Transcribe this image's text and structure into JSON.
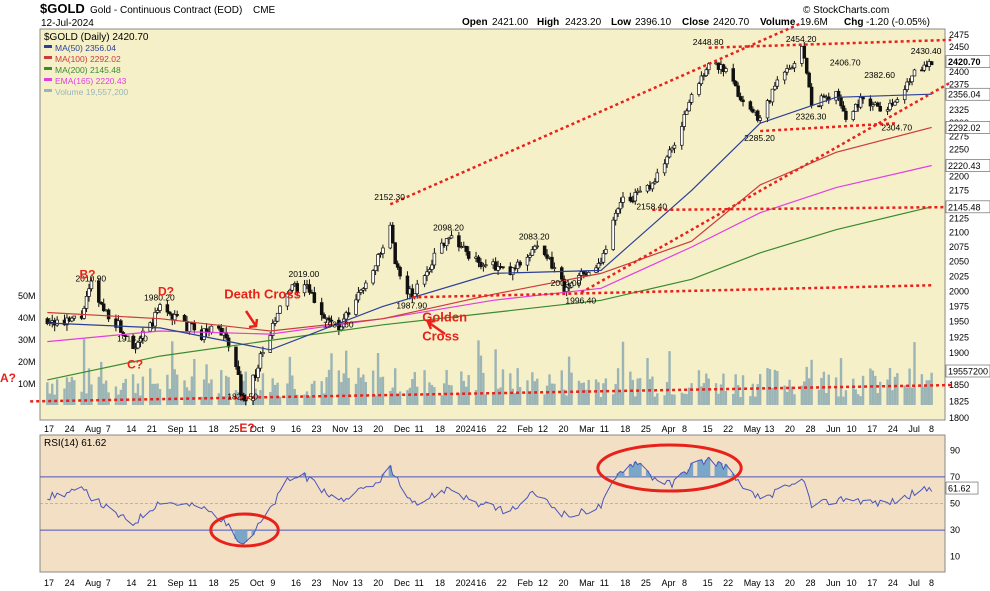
{
  "header": {
    "symbol": "$GOLD",
    "name": "Gold - Continuous Contract (EOD)",
    "exchange": "CME",
    "date": "12-Jul-2024",
    "open_label": "Open",
    "open": "2421.00",
    "high_label": "High",
    "high": "2423.20",
    "low_label": "Low",
    "low": "2396.10",
    "close_label": "Close",
    "close": "2420.70",
    "volume_label": "Volume",
    "volume": "19.6M",
    "chg_label": "Chg",
    "chg": "-1.20 (-0.05%)",
    "watermark": "© StockCharts.com"
  },
  "colors": {
    "price_bg": "#f6f0c8",
    "rsi_bg": "#f3dfc4",
    "candle": "#111111",
    "ma50": "#2a3f9a",
    "ma100": "#cc3b3b",
    "ma200": "#3a8a2f",
    "ema165": "#e23ee2",
    "volume": "#9bb4b6",
    "annotation": "#e8211b",
    "rsi_line": "#4a55bb",
    "rsi_fill": "#7aa6c8"
  },
  "chart_data": [
    {
      "type": "candlestick",
      "title": "$GOLD (Daily) 2420.70",
      "x_range": [
        "2023-07-17",
        "2024-07-12"
      ],
      "ylim": [
        1800,
        2475
      ],
      "scale": "log",
      "legend_placement": "top-left",
      "grid": false,
      "y_ticks": [
        1800,
        1825,
        1850,
        1875,
        1900,
        1925,
        1950,
        1975,
        2000,
        2025,
        2050,
        2075,
        2100,
        2125,
        2150,
        2175,
        2200,
        2225,
        2250,
        2275,
        2300,
        2325,
        2350,
        2375,
        2400,
        2425,
        2450,
        2475
      ],
      "x_tick_labels": [
        "17",
        "24",
        "Aug",
        "7",
        "14",
        "21",
        "Sep",
        "11",
        "18",
        "25",
        "Oct",
        "9",
        "16",
        "23",
        "Nov",
        "13",
        "20",
        "Dec",
        "11",
        "18",
        "2024",
        "16",
        "22",
        "Feb",
        "12",
        "20",
        "Mar",
        "11",
        "18",
        "25",
        "Apr",
        "8",
        "15",
        "22",
        "May",
        "13",
        "20",
        "28",
        "Jun",
        "10",
        "17",
        "24",
        "Jul",
        "8"
      ],
      "legend": [
        {
          "name": "$GOLD (Daily) 2420.70",
          "color": "#111111"
        },
        {
          "name": "MA(50) 2356.04",
          "color": "#2a3f9a"
        },
        {
          "name": "MA(100) 2292.02",
          "color": "#cc3b3b"
        },
        {
          "name": "MA(200) 2145.48",
          "color": "#3a8a2f"
        },
        {
          "name": "EMA(165) 2220.43",
          "color": "#e23ee2"
        },
        {
          "name": "Volume 19,557,200",
          "color": "#9bb4b6"
        }
      ],
      "right_axis_tags": [
        {
          "value": 2420.7,
          "label": "2420.70"
        },
        {
          "value": 2356.04,
          "label": "2356.04"
        },
        {
          "value": 2292.02,
          "label": "2292.02"
        },
        {
          "value": 2220.43,
          "label": "2220.43"
        },
        {
          "value": 2145.48,
          "label": "2145.48"
        },
        {
          "value": 1957,
          "label": "19557200"
        }
      ],
      "price_close": [
        [
          "2023-07-17",
          1955
        ],
        [
          "2023-07-24",
          1945
        ],
        [
          "2023-07-31",
          1960
        ],
        [
          "2023-08-04",
          2010
        ],
        [
          "2023-08-08",
          1975
        ],
        [
          "2023-08-14",
          1950
        ],
        [
          "2023-08-21",
          1913
        ],
        [
          "2023-08-28",
          1940
        ],
        [
          "2023-09-01",
          1975
        ],
        [
          "2023-09-11",
          1945
        ],
        [
          "2023-09-18",
          1930
        ],
        [
          "2023-09-25",
          1945
        ],
        [
          "2023-10-02",
          1880
        ],
        [
          "2023-10-05",
          1823
        ],
        [
          "2023-10-09",
          1860
        ],
        [
          "2023-10-16",
          1930
        ],
        [
          "2023-10-23",
          2000
        ],
        [
          "2023-10-30",
          2010
        ],
        [
          "2023-11-06",
          1965
        ],
        [
          "2023-11-13",
          1935
        ],
        [
          "2023-11-20",
          1985
        ],
        [
          "2023-11-27",
          2040
        ],
        [
          "2023-12-01",
          2070
        ],
        [
          "2023-12-04",
          2110
        ],
        [
          "2023-12-06",
          2040
        ],
        [
          "2023-12-13",
          1990
        ],
        [
          "2023-12-20",
          2045
        ],
        [
          "2023-12-28",
          2098
        ],
        [
          "2024-01-08",
          2050
        ],
        [
          "2024-01-16",
          2040
        ],
        [
          "2024-01-22",
          2030
        ],
        [
          "2024-02-01",
          2075
        ],
        [
          "2024-02-08",
          2045
        ],
        [
          "2024-02-14",
          2000
        ],
        [
          "2024-02-20",
          2030
        ],
        [
          "2024-02-28",
          2050
        ],
        [
          "2024-03-07",
          2160
        ],
        [
          "2024-03-14",
          2165
        ],
        [
          "2024-03-20",
          2190
        ],
        [
          "2024-03-28",
          2250
        ],
        [
          "2024-04-05",
          2350
        ],
        [
          "2024-04-12",
          2420
        ],
        [
          "2024-04-19",
          2400
        ],
        [
          "2024-04-26",
          2340
        ],
        [
          "2024-05-03",
          2310
        ],
        [
          "2024-05-10",
          2380
        ],
        [
          "2024-05-17",
          2420
        ],
        [
          "2024-05-20",
          2454
        ],
        [
          "2024-05-24",
          2335
        ],
        [
          "2024-06-03",
          2360
        ],
        [
          "2024-06-07",
          2310
        ],
        [
          "2024-06-14",
          2350
        ],
        [
          "2024-06-21",
          2330
        ],
        [
          "2024-06-28",
          2340
        ],
        [
          "2024-07-05",
          2405
        ],
        [
          "2024-07-12",
          2420.7
        ]
      ],
      "price_labels": [
        {
          "label": "2010.90",
          "date": "2023-08-04",
          "value": 2010.9
        },
        {
          "label": "1913.60",
          "date": "2023-08-21",
          "value": 1913.6
        },
        {
          "label": "1980.20",
          "date": "2023-09-01",
          "value": 1980.2
        },
        {
          "label": "1823.50",
          "date": "2023-10-05",
          "value": 1823.5
        },
        {
          "label": "2019.00",
          "date": "2023-10-30",
          "value": 2019.0
        },
        {
          "label": "1935.60",
          "date": "2023-11-13",
          "value": 1935.6
        },
        {
          "label": "2152.30",
          "date": "2023-12-04",
          "value": 2152.3
        },
        {
          "label": "1987.90",
          "date": "2023-12-13",
          "value": 1987.9
        },
        {
          "label": "2098.20",
          "date": "2023-12-28",
          "value": 2098.2
        },
        {
          "label": "2083.20",
          "date": "2024-02-01",
          "value": 2083.2
        },
        {
          "label": "2004.00",
          "date": "2024-02-14",
          "value": 2004.0
        },
        {
          "label": "1996.40",
          "date": "2024-02-20",
          "value": 1996.4
        },
        {
          "label": "2158.40",
          "date": "2024-03-20",
          "value": 2158.4
        },
        {
          "label": "2448.80",
          "date": "2024-04-12",
          "value": 2448.8
        },
        {
          "label": "2285.20",
          "date": "2024-05-03",
          "value": 2285.2
        },
        {
          "label": "2454.20",
          "date": "2024-05-20",
          "value": 2454.2
        },
        {
          "label": "2326.30",
          "date": "2024-05-24",
          "value": 2326.3
        },
        {
          "label": "2406.70",
          "date": "2024-06-07",
          "value": 2406.7
        },
        {
          "label": "2382.60",
          "date": "2024-06-21",
          "value": 2382.6
        },
        {
          "label": "2304.70",
          "date": "2024-06-28",
          "value": 2304.7
        },
        {
          "label": "2430.40",
          "date": "2024-07-10",
          "value": 2430.4
        }
      ],
      "ma50": [
        [
          "2023-07-17",
          1948
        ],
        [
          "2023-09-01",
          1940
        ],
        [
          "2023-10-16",
          1905
        ],
        [
          "2023-12-01",
          1975
        ],
        [
          "2024-01-15",
          2030
        ],
        [
          "2024-02-28",
          2035
        ],
        [
          "2024-04-05",
          2175
        ],
        [
          "2024-05-03",
          2300
        ],
        [
          "2024-06-03",
          2350
        ],
        [
          "2024-07-12",
          2356.04
        ]
      ],
      "ma100": [
        [
          "2023-07-17",
          1965
        ],
        [
          "2023-09-01",
          1955
        ],
        [
          "2023-10-16",
          1935
        ],
        [
          "2023-12-01",
          1955
        ],
        [
          "2024-01-15",
          1995
        ],
        [
          "2024-02-28",
          2030
        ],
        [
          "2024-04-05",
          2085
        ],
        [
          "2024-05-03",
          2185
        ],
        [
          "2024-06-03",
          2245
        ],
        [
          "2024-07-12",
          2292.02
        ]
      ],
      "ema165": [
        [
          "2023-07-17",
          1918
        ],
        [
          "2023-09-01",
          1935
        ],
        [
          "2023-10-16",
          1930
        ],
        [
          "2023-12-01",
          1955
        ],
        [
          "2024-01-15",
          1985
        ],
        [
          "2024-02-28",
          2005
        ],
        [
          "2024-04-05",
          2075
        ],
        [
          "2024-05-03",
          2135
        ],
        [
          "2024-06-03",
          2180
        ],
        [
          "2024-07-12",
          2220.43
        ]
      ],
      "ma200": [
        [
          "2023-07-17",
          1858
        ],
        [
          "2023-09-01",
          1895
        ],
        [
          "2023-10-16",
          1920
        ],
        [
          "2023-12-01",
          1945
        ],
        [
          "2024-01-15",
          1965
        ],
        [
          "2024-02-28",
          1985
        ],
        [
          "2024-04-05",
          2020
        ],
        [
          "2024-05-03",
          2065
        ],
        [
          "2024-06-03",
          2105
        ],
        [
          "2024-07-12",
          2145.48
        ]
      ],
      "volume_axis_labels": [
        {
          "label": "50M",
          "value": 50
        },
        {
          "label": "40M",
          "value": 40
        },
        {
          "label": "30M",
          "value": 30
        },
        {
          "label": "20M",
          "value": 20
        },
        {
          "label": "10M",
          "value": 10
        }
      ],
      "trendlines": [
        {
          "from": [
            "2023-12-04",
            2150
          ],
          "to": [
            "2024-05-20",
            2500
          ]
        },
        {
          "from": [
            "2024-02-20",
            1998
          ],
          "to": [
            "2024-07-20",
            2380
          ]
        },
        {
          "from": [
            "2023-12-13",
            1990
          ],
          "to": [
            "2024-07-12",
            2010
          ]
        },
        {
          "from": [
            "2024-04-12",
            2449
          ],
          "to": [
            "2024-07-20",
            2465
          ]
        },
        {
          "from": [
            "2024-05-03",
            2285
          ],
          "to": [
            "2024-06-28",
            2300
          ]
        },
        {
          "from": [
            "2024-03-20",
            2140
          ],
          "to": [
            "2024-07-20",
            2145
          ]
        },
        {
          "from": [
            "2023-07-10",
            1825
          ],
          "to": [
            "2024-07-20",
            1850
          ]
        }
      ],
      "annotations": [
        {
          "label": "B?",
          "date": "2023-08-04",
          "value": 2010.9
        },
        {
          "label": "D?",
          "date": "2023-09-01",
          "value": 1980.2
        },
        {
          "label": "C?",
          "date": "2023-08-21",
          "value": 1913.6
        },
        {
          "label": "Death Cross",
          "date": "2023-10-16",
          "value": 1985
        },
        {
          "label": "Golden",
          "date": "2023-12-15",
          "value": 1950
        },
        {
          "label": "Cross",
          "date": "2023-12-15",
          "value": 1920
        },
        {
          "label": "E?",
          "date": "2023-10-05",
          "value": 1800
        },
        {
          "label": "A?",
          "date": "2023-07-10",
          "value": 1860
        }
      ]
    },
    {
      "type": "line",
      "title": "RSI(14) 61.62",
      "ylim": [
        0,
        100
      ],
      "y_ticks": [
        10,
        30,
        50,
        70,
        90
      ],
      "levels": [
        30,
        70
      ],
      "last": 61.62,
      "legend_placement": "top-left",
      "values": [
        [
          "2023-07-17",
          55
        ],
        [
          "2023-07-31",
          60
        ],
        [
          "2023-08-14",
          42
        ],
        [
          "2023-08-21",
          35
        ],
        [
          "2023-09-01",
          52
        ],
        [
          "2023-09-18",
          47
        ],
        [
          "2023-09-25",
          40
        ],
        [
          "2023-10-05",
          20
        ],
        [
          "2023-10-09",
          28
        ],
        [
          "2023-10-16",
          45
        ],
        [
          "2023-10-23",
          68
        ],
        [
          "2023-10-30",
          70
        ],
        [
          "2023-11-13",
          52
        ],
        [
          "2023-11-27",
          63
        ],
        [
          "2023-12-04",
          76
        ],
        [
          "2023-12-13",
          48
        ],
        [
          "2023-12-28",
          62
        ],
        [
          "2024-01-08",
          50
        ],
        [
          "2024-01-22",
          44
        ],
        [
          "2024-02-01",
          58
        ],
        [
          "2024-02-14",
          40
        ],
        [
          "2024-02-28",
          48
        ],
        [
          "2024-03-07",
          75
        ],
        [
          "2024-03-14",
          82
        ],
        [
          "2024-03-20",
          70
        ],
        [
          "2024-03-28",
          64
        ],
        [
          "2024-04-05",
          79
        ],
        [
          "2024-04-12",
          83
        ],
        [
          "2024-04-19",
          78
        ],
        [
          "2024-04-26",
          60
        ],
        [
          "2024-05-03",
          54
        ],
        [
          "2024-05-17",
          64
        ],
        [
          "2024-05-20",
          71
        ],
        [
          "2024-05-24",
          48
        ],
        [
          "2024-06-07",
          54
        ],
        [
          "2024-06-21",
          50
        ],
        [
          "2024-06-28",
          52
        ],
        [
          "2024-07-05",
          58
        ],
        [
          "2024-07-12",
          61.62
        ]
      ],
      "highlights": [
        {
          "from": "2023-09-25",
          "to": "2023-10-16"
        },
        {
          "from": "2024-03-01",
          "to": "2024-04-22"
        }
      ]
    }
  ]
}
